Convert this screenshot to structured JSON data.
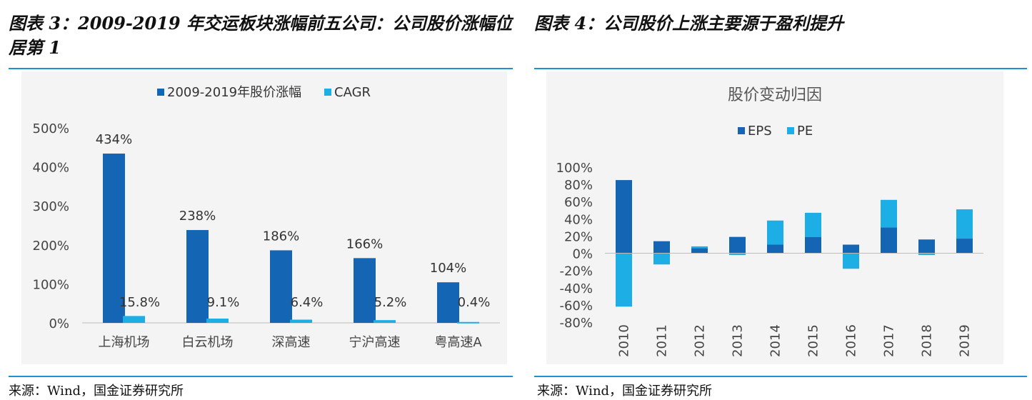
{
  "left": {
    "title": "图表 3：2009-2019 年交运板块涨幅前五公司：公司股价涨幅位居第 1",
    "source": "来源：Wind，国金证券研究所"
  },
  "right": {
    "title": "图表 4：公司股价上涨主要源于盈利提升",
    "source": "来源：Wind，国金证券研究所"
  },
  "colors": {
    "dark": "#1565b5",
    "light": "#1eaee6",
    "rule": "#1f8fd6",
    "panel": "#f4f4f4"
  },
  "chart_data": [
    {
      "type": "bar",
      "title": "",
      "categories": [
        "上海机场",
        "白云机场",
        "深高速",
        "宁沪高速",
        "粤高速A"
      ],
      "series": [
        {
          "name": "2009-2019年股价涨幅",
          "values": [
            434,
            238,
            186,
            166,
            104
          ],
          "labels": [
            "434%",
            "238%",
            "186%",
            "166%",
            "104%"
          ]
        },
        {
          "name": "CAGR",
          "values": [
            15.8,
            9.1,
            6.4,
            5.2,
            0.4
          ],
          "labels": [
            "15.8%",
            "9.1%",
            "6.4%",
            "5.2%",
            "0.4%"
          ]
        }
      ],
      "yticks": [
        "0%",
        "100%",
        "200%",
        "300%",
        "400%",
        "500%"
      ],
      "ylim": [
        0,
        500
      ],
      "legend": "top",
      "xlabel": "",
      "ylabel": ""
    },
    {
      "type": "bar",
      "stacked": true,
      "title": "股价变动归因",
      "categories": [
        "2010",
        "2011",
        "2012",
        "2013",
        "2014",
        "2015",
        "2016",
        "2017",
        "2018",
        "2019"
      ],
      "series": [
        {
          "name": "EPS",
          "values": [
            85,
            14,
            6,
            19,
            10,
            19,
            10,
            30,
            16,
            17
          ]
        },
        {
          "name": "PE",
          "values": [
            -62,
            -13,
            2,
            -2,
            28,
            28,
            -18,
            32,
            -2,
            34
          ]
        }
      ],
      "yticks": [
        "-80%",
        "-60%",
        "-40%",
        "-20%",
        "0%",
        "20%",
        "40%",
        "60%",
        "80%",
        "100%"
      ],
      "ylim": [
        -80,
        100
      ],
      "legend": "top",
      "xlabel": "",
      "ylabel": ""
    }
  ]
}
